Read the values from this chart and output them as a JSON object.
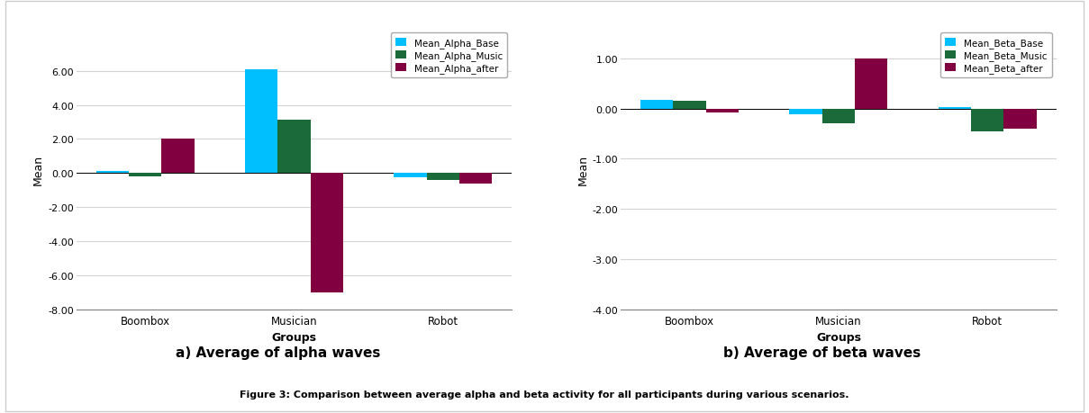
{
  "alpha": {
    "groups": [
      "Boombox",
      "Musician",
      "Robot"
    ],
    "base": [
      0.1,
      6.1,
      -0.25
    ],
    "music": [
      -0.2,
      3.15,
      -0.4
    ],
    "after": [
      2.0,
      -7.0,
      -0.6
    ],
    "ylim": [
      -8.0,
      8.5
    ],
    "yticks": [
      -8.0,
      -6.0,
      -4.0,
      -2.0,
      0.0,
      2.0,
      4.0,
      6.0
    ],
    "ylabel": "Mean",
    "xlabel": "Groups",
    "legend_labels": [
      "Mean_Alpha_Base",
      "Mean_Alpha_Music",
      "Mean_Alpha_after"
    ],
    "subtitle": "a) Average of alpha waves"
  },
  "beta": {
    "groups": [
      "Boombox",
      "Musician",
      "Robot"
    ],
    "base": [
      0.18,
      -0.12,
      0.02
    ],
    "music": [
      0.16,
      -0.3,
      -0.45
    ],
    "after": [
      -0.08,
      1.0,
      -0.4
    ],
    "ylim": [
      -4.0,
      1.6
    ],
    "yticks": [
      -4.0,
      -3.0,
      -2.0,
      -1.0,
      0.0,
      1.0
    ],
    "ylabel": "Mean",
    "xlabel": "Groups",
    "legend_labels": [
      "Mean_Beta_Base",
      "Mean_Beta_Music",
      "Mean_Beta_after"
    ],
    "subtitle": "b) Average of beta waves"
  },
  "colors": {
    "base": "#00BFFF",
    "music": "#1B6B3A",
    "after": "#800040"
  },
  "figure_caption": "Figure 3: Comparison between average alpha and beta activity for all participants during various scenarios.",
  "bar_width": 0.22
}
